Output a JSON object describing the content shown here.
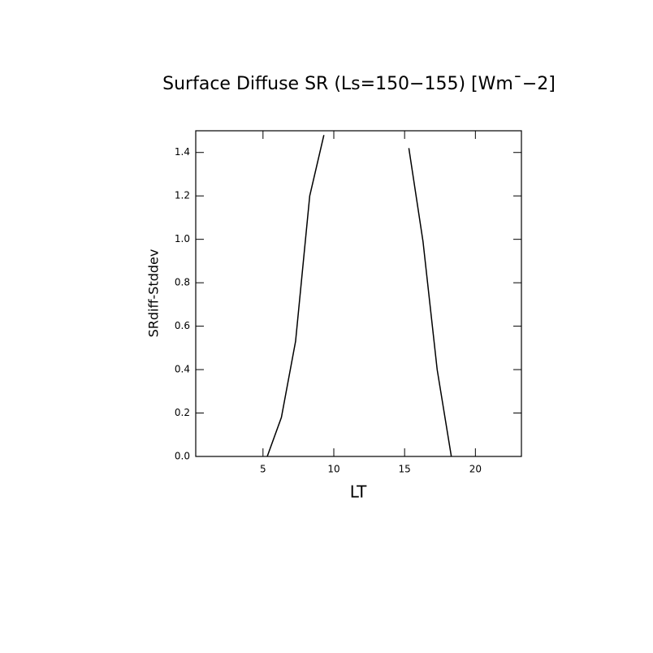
{
  "chart_data": {
    "type": "line",
    "title": "Surface Diffuse SR (Ls=150−155) [Wm¯−2]",
    "x_label": "LT",
    "y_label": "SRdiff-Stddev",
    "x": [
      5.3,
      6.3,
      7.3,
      8.3,
      9.3,
      12.3,
      15.3,
      16.3,
      17.3,
      18.3
    ],
    "series": [
      {
        "color": "#000000",
        "values": [
          0,
          0.18,
          0.53,
          1.2,
          1.48,
          null,
          1.42,
          0.99,
          0.4,
          0
        ]
      }
    ],
    "xlim": [
      0.25,
      23.25
    ],
    "xticks": [
      5,
      10,
      15,
      20
    ],
    "ylim": [
      0,
      1.5
    ],
    "yticks": [
      {
        "value": 0,
        "label": "0.0"
      },
      0.2,
      0.4,
      0.6,
      0.8,
      {
        "value": 1,
        "label": "1.0"
      },
      1.2,
      1.4
    ]
  }
}
